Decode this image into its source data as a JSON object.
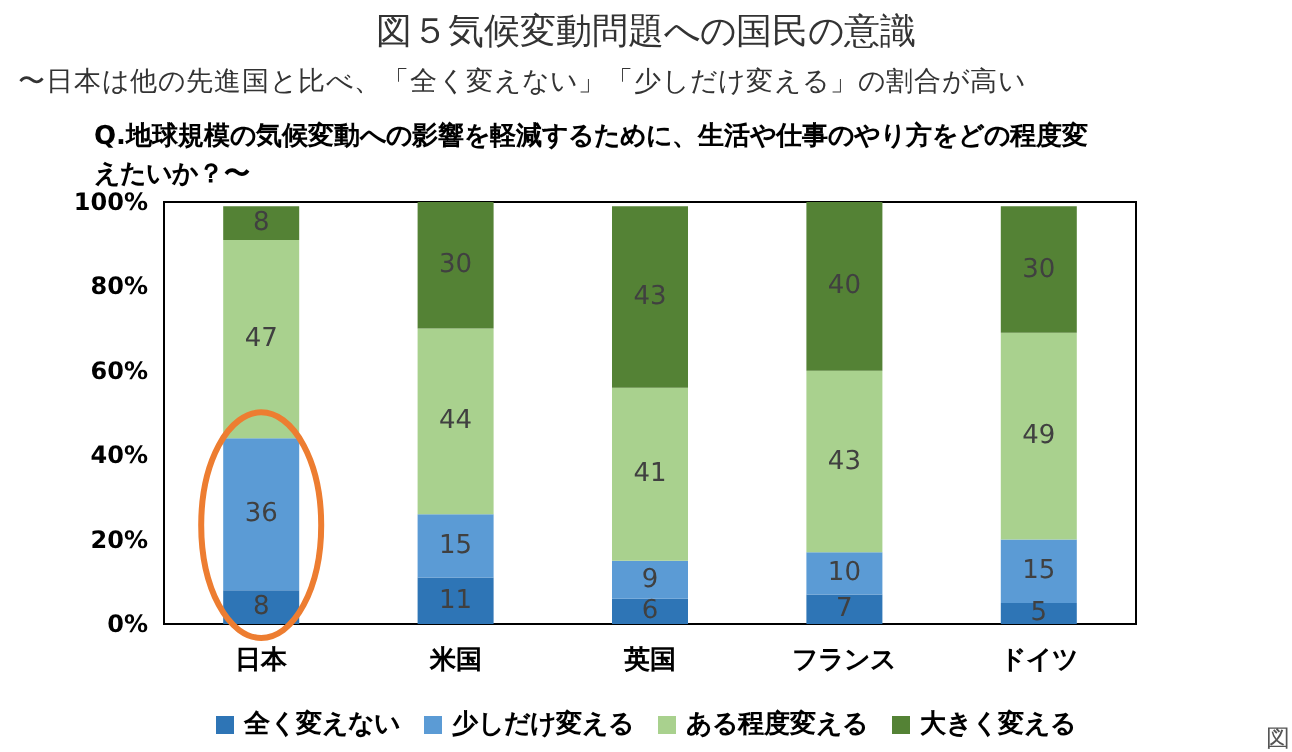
{
  "chart_data": {
    "type": "bar",
    "title": "図５気候変動問題への国民の意識",
    "subtitle": "〜日本は他の先進国と比べ、「全く変えない」「少しだけ変える」の割合が高い",
    "annotations": [
      "Q.地球規模の気候変動への影響を軽減するために、生活や仕事のやり方をどの程度変えたいか？〜",
      "図"
    ],
    "categories": [
      "日本",
      "米国",
      "英国",
      "フランス",
      "ドイツ"
    ],
    "stacked": true,
    "data_labels": true,
    "grid": false,
    "legend": "bottom",
    "ylim": [
      0,
      100
    ],
    "yticks": [
      {
        "value": 0,
        "label": "0%"
      },
      {
        "value": 20,
        "label": "20%"
      },
      {
        "value": 40,
        "label": "40%"
      },
      {
        "value": 60,
        "label": "60%"
      },
      {
        "value": 80,
        "label": "80%"
      },
      {
        "value": 100,
        "label": "100%"
      }
    ],
    "series": [
      {
        "name": "全く変えない",
        "color": "#2e75b6",
        "values": [
          8,
          11,
          6,
          7,
          5
        ]
      },
      {
        "name": "少しだけ変える",
        "color": "#5b9bd5",
        "values": [
          36,
          15,
          9,
          10,
          15
        ]
      },
      {
        "name": "ある程度変える",
        "color": "#a9d18e",
        "values": [
          47,
          44,
          41,
          43,
          49
        ]
      },
      {
        "name": "大きく変える",
        "color": "#548235",
        "values": [
          8,
          30,
          43,
          40,
          30
        ]
      }
    ]
  }
}
